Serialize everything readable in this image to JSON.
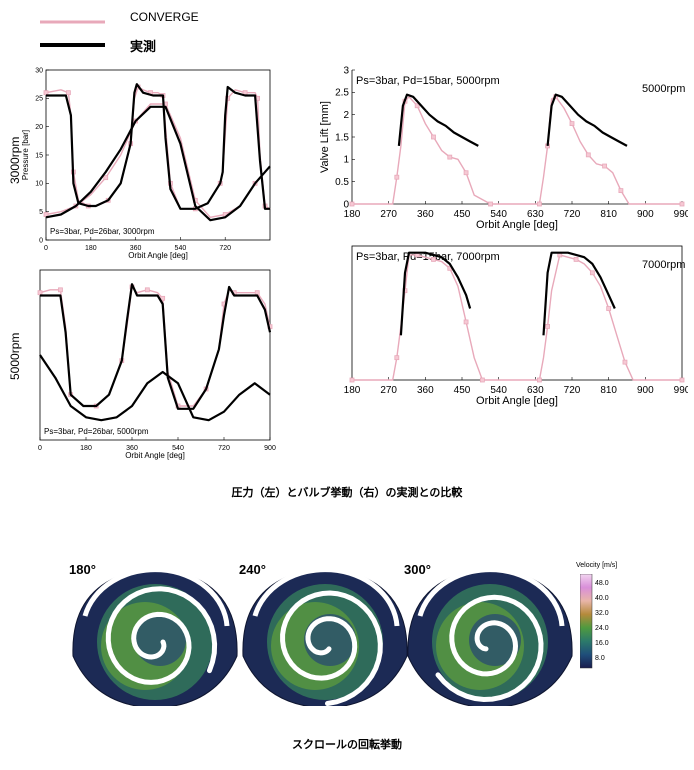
{
  "legend": {
    "converge_label": "CONVERGE",
    "measured_label": "実測",
    "converge_color": "#e8a9ba",
    "measured_color": "#000000"
  },
  "row_labels": {
    "top": "3000rpm",
    "bottom": "5000rpm"
  },
  "captions": {
    "comparison": "圧力（左）とバルブ挙動（右）の実測との比較",
    "scroll": "スクロールの回転挙動"
  },
  "colorbar": {
    "title": "Velocity [m/s]",
    "ticks": [
      "48.0",
      "40.0",
      "32.0",
      "24.0",
      "16.0",
      "8.0"
    ],
    "colors": [
      "#f2d6f0",
      "#d98fd9",
      "#e8b5a8",
      "#b58a3b",
      "#4f9a3f",
      "#2c7a6a",
      "#1f4e7a",
      "#1a1d4e"
    ]
  },
  "snapshots": [
    {
      "angle": "180°"
    },
    {
      "angle": "240°"
    },
    {
      "angle": "300°"
    }
  ],
  "chart_data": [
    {
      "type": "line",
      "id": "pressure-3000",
      "annotation": "Ps=3bar, Pd=26bar, 3000rpm",
      "xlabel": "Orbit Angle [deg]",
      "ylabel": "Pressure [bar]",
      "xlim": [
        0,
        900
      ],
      "ylim": [
        0,
        30
      ],
      "xticks": [
        "0",
        "180",
        "360",
        "540",
        "720"
      ],
      "yticks": [
        "0",
        "5",
        "10",
        "15",
        "20",
        "25",
        "30"
      ],
      "series": [
        {
          "name": "CONVERGE",
          "x": [
            0,
            60,
            90,
            100,
            110,
            130,
            170,
            200,
            250,
            300,
            340,
            355,
            370,
            390,
            420,
            450,
            470,
            480,
            500,
            540,
            600,
            650,
            700,
            710,
            730,
            760,
            800,
            840,
            850,
            860,
            880,
            900
          ],
          "y": [
            26,
            26.5,
            26,
            22,
            12,
            7,
            6,
            6,
            7,
            10,
            17,
            25,
            27,
            26.5,
            26,
            26,
            25.5,
            20,
            10,
            5.5,
            5.5,
            6.5,
            10,
            12,
            25,
            26.5,
            26,
            26,
            25,
            15,
            6,
            5.5
          ]
        },
        {
          "name": "CONVERGE-2",
          "x": [
            0,
            60,
            120,
            180,
            240,
            300,
            360,
            420,
            480,
            540,
            600,
            660,
            720,
            780,
            840,
            900
          ],
          "y": [
            4.5,
            5,
            6,
            8,
            11,
            15,
            21,
            24,
            24,
            18,
            7,
            4,
            4.5,
            6,
            10,
            13
          ]
        },
        {
          "name": "Measured",
          "x": [
            0,
            40,
            80,
            100,
            110,
            130,
            170,
            200,
            250,
            300,
            340,
            355,
            365,
            390,
            430,
            470,
            480,
            500,
            540,
            600,
            650,
            700,
            710,
            720,
            730,
            760,
            800,
            840,
            860,
            880,
            900
          ],
          "y": [
            25.5,
            25.5,
            25.5,
            22,
            10,
            6.5,
            6,
            6,
            7,
            10,
            17,
            26,
            27.5,
            26,
            25.5,
            25.5,
            18,
            9,
            5.5,
            5.5,
            6.5,
            10,
            12,
            22,
            27,
            26,
            25.5,
            25.5,
            14,
            5.5,
            5.5
          ]
        },
        {
          "name": "Measured-2",
          "x": [
            0,
            60,
            120,
            180,
            240,
            300,
            360,
            420,
            480,
            540,
            600,
            660,
            720,
            780,
            840,
            900
          ],
          "y": [
            4,
            4.5,
            6,
            8.5,
            12,
            16,
            21,
            23.5,
            23.5,
            17,
            6,
            3.5,
            4,
            6,
            10,
            13
          ]
        }
      ]
    },
    {
      "type": "line",
      "id": "pressure-5000",
      "annotation": "Ps=3bar, Pd=26bar, 5000rpm",
      "xlabel": "Orbit Angle [deg]",
      "xlim": [
        0,
        900
      ],
      "ylim": [
        0,
        30
      ],
      "xticks": [
        "0",
        "180",
        "360",
        "540",
        "720",
        "900"
      ],
      "series": [
        {
          "name": "CONVERGE",
          "x": [
            0,
            40,
            80,
            100,
            120,
            170,
            220,
            270,
            320,
            340,
            360,
            380,
            420,
            460,
            480,
            500,
            540,
            600,
            650,
            700,
            720,
            740,
            760,
            800,
            850,
            880,
            900
          ],
          "y": [
            26,
            26.5,
            26.5,
            20,
            8,
            6,
            6,
            8,
            14,
            20,
            27,
            26,
            26.5,
            26,
            25,
            12,
            6,
            6,
            9,
            16,
            24,
            26.5,
            26,
            26,
            26,
            24,
            20
          ]
        },
        {
          "name": "Measured",
          "x": [
            0,
            40,
            80,
            100,
            120,
            170,
            220,
            270,
            320,
            340,
            360,
            380,
            420,
            460,
            480,
            500,
            540,
            600,
            650,
            700,
            720,
            740,
            760,
            800,
            850,
            880,
            900
          ],
          "y": [
            25.5,
            25.5,
            25.5,
            19,
            8,
            6,
            6,
            8,
            14,
            21,
            27.5,
            25.5,
            25.5,
            25.5,
            24,
            11,
            5.5,
            5.5,
            9,
            16,
            22,
            27,
            25.5,
            25.5,
            25.5,
            23,
            19
          ]
        },
        {
          "name": "Measured-2",
          "x": [
            0,
            60,
            120,
            180,
            240,
            300,
            360,
            420,
            480,
            540,
            600,
            660,
            720,
            780,
            840,
            900
          ],
          "y": [
            15,
            11,
            6,
            4,
            3.5,
            4,
            6,
            10,
            12,
            10,
            4,
            3.5,
            5,
            8,
            10,
            8
          ]
        }
      ]
    },
    {
      "type": "line",
      "id": "valve-5000",
      "annotation": "Ps=3bar, Pd=15bar, 5000rpm",
      "corner_label": "5000rpm",
      "xlabel": "Orbit Angle [deg]",
      "ylabel": "Valve Lift [mm]",
      "xlim": [
        180,
        990
      ],
      "ylim": [
        0,
        3
      ],
      "xticks": [
        "180",
        "270",
        "360",
        "450",
        "540",
        "630",
        "720",
        "810",
        "900",
        "990"
      ],
      "yticks": [
        "0",
        "0.5",
        "1",
        "1.5",
        "2",
        "2.5",
        "3"
      ],
      "series": [
        {
          "name": "CONVERGE",
          "x": [
            180,
            280,
            290,
            300,
            310,
            320,
            340,
            360,
            380,
            400,
            420,
            440,
            460,
            480,
            520,
            600,
            640,
            650,
            660,
            670,
            680,
            700,
            720,
            740,
            760,
            780,
            800,
            820,
            840,
            860,
            990
          ],
          "y": [
            0,
            0,
            0.6,
            1.3,
            2.3,
            2.4,
            2.2,
            1.8,
            1.5,
            1.2,
            1.05,
            1.0,
            0.7,
            0.2,
            0,
            0,
            0,
            0.6,
            1.3,
            2.35,
            2.4,
            2.15,
            1.8,
            1.4,
            1.1,
            0.9,
            0.85,
            0.7,
            0.3,
            0,
            0
          ]
        },
        {
          "name": "Measured",
          "x": [
            295,
            305,
            315,
            330,
            350,
            370,
            390,
            410,
            430,
            450,
            470,
            490
          ],
          "y": [
            1.3,
            2.2,
            2.45,
            2.4,
            2.2,
            2.0,
            1.85,
            1.75,
            1.6,
            1.5,
            1.4,
            1.3
          ]
        },
        {
          "name": "Measured-2",
          "x": [
            660,
            670,
            680,
            695,
            715,
            735,
            755,
            775,
            795,
            815,
            835,
            855
          ],
          "y": [
            1.3,
            2.2,
            2.45,
            2.4,
            2.2,
            2.0,
            1.85,
            1.75,
            1.6,
            1.5,
            1.4,
            1.3
          ]
        }
      ]
    },
    {
      "type": "line",
      "id": "valve-7000",
      "annotation": "Ps=3bar, Pd=15bar, 7000rpm",
      "corner_label": "7000rpm",
      "xlabel": "Orbit Angle [deg]",
      "xlim": [
        180,
        990
      ],
      "ylim": [
        0,
        3
      ],
      "xticks": [
        "180",
        "270",
        "360",
        "450",
        "540",
        "630",
        "720",
        "810",
        "900",
        "990"
      ],
      "series": [
        {
          "name": "CONVERGE",
          "x": [
            180,
            280,
            290,
            300,
            310,
            320,
            340,
            360,
            380,
            400,
            420,
            440,
            460,
            480,
            500,
            630,
            640,
            650,
            660,
            670,
            690,
            710,
            730,
            750,
            770,
            790,
            810,
            830,
            850,
            870,
            990
          ],
          "y": [
            0,
            0,
            0.5,
            1.2,
            2.0,
            2.8,
            2.8,
            2.75,
            2.7,
            2.65,
            2.5,
            2.1,
            1.3,
            0.5,
            0,
            0,
            0,
            0.5,
            1.2,
            2.0,
            2.8,
            2.75,
            2.7,
            2.6,
            2.4,
            2.1,
            1.6,
            1.0,
            0.4,
            0,
            0
          ]
        },
        {
          "name": "Measured",
          "x": [
            300,
            310,
            320,
            340,
            360,
            380,
            400,
            420,
            440,
            460,
            470
          ],
          "y": [
            1.0,
            2.4,
            2.85,
            2.85,
            2.85,
            2.8,
            2.75,
            2.6,
            2.3,
            1.9,
            1.6
          ]
        },
        {
          "name": "Measured-2",
          "x": [
            650,
            660,
            670,
            690,
            710,
            730,
            750,
            770,
            790,
            810,
            825
          ],
          "y": [
            1.0,
            2.4,
            2.85,
            2.85,
            2.85,
            2.8,
            2.75,
            2.6,
            2.3,
            1.9,
            1.6
          ]
        }
      ]
    }
  ]
}
